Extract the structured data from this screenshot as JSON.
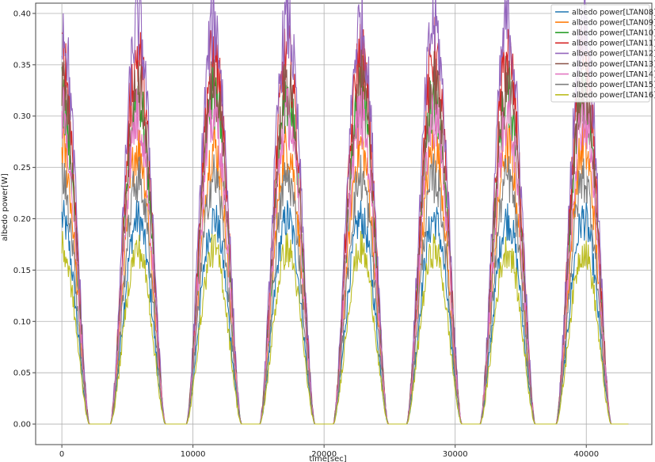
{
  "chart_data": {
    "type": "line",
    "xlabel": "time[sec]",
    "ylabel": "albedo power[W]",
    "xlim": [
      -2000,
      45000
    ],
    "ylim": [
      -0.02,
      0.41
    ],
    "x_ticks": [
      0,
      10000,
      20000,
      30000,
      40000
    ],
    "x_tick_labels": [
      "0",
      "10000",
      "20000",
      "30000",
      "40000"
    ],
    "y_ticks": [
      0.0,
      0.05,
      0.1,
      0.15,
      0.2,
      0.25,
      0.3,
      0.35,
      0.4
    ],
    "y_tick_labels": [
      "0.00",
      "0.05",
      "0.10",
      "0.15",
      "0.20",
      "0.25",
      "0.30",
      "0.35",
      "0.40"
    ],
    "grid": true,
    "legend_position": "top-right",
    "pulse_centers": [
      0,
      5800,
      11600,
      17200,
      22800,
      28400,
      34000,
      39800
    ],
    "pulse_half_width": 2100,
    "x_end": 43200,
    "series": [
      {
        "name": "albedo power[LTAN08]",
        "color": "#1f77b4",
        "peak": 0.2
      },
      {
        "name": "albedo power[LTAN09]",
        "color": "#ff7f0e",
        "peak": 0.27
      },
      {
        "name": "albedo power[LTAN10]",
        "color": "#2ca02c",
        "peak": 0.32
      },
      {
        "name": "albedo power[LTAN11]",
        "color": "#d62728",
        "peak": 0.36
      },
      {
        "name": "albedo power[LTAN12]",
        "color": "#9467bd",
        "peak": 0.39
      },
      {
        "name": "albedo power[LTAN13]",
        "color": "#8c564b",
        "peak": 0.33
      },
      {
        "name": "albedo power[LTAN14]",
        "color": "#e377c2",
        "peak": 0.3
      },
      {
        "name": "albedo power[LTAN15]",
        "color": "#7f7f7f",
        "peak": 0.24
      },
      {
        "name": "albedo power[LTAN16]",
        "color": "#bcbd22",
        "peak": 0.17
      }
    ]
  }
}
